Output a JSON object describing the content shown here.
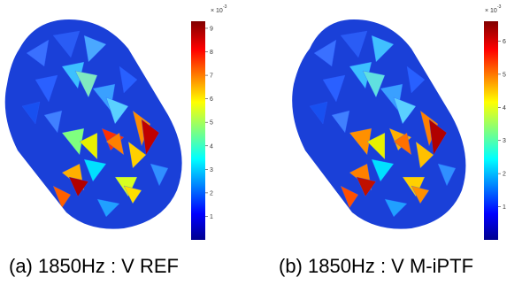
{
  "panels": [
    {
      "caption": "(a) 1850Hz : V REF",
      "colorbar": {
        "exponent_label": "× 10",
        "exponent_power": "-3",
        "ticks": [
          "1",
          "2",
          "3",
          "4",
          "5",
          "6",
          "7",
          "8",
          "9"
        ],
        "max": 9.3
      }
    },
    {
      "caption": "(b) 1850Hz : V M-iPTF",
      "colorbar": {
        "exponent_label": "× 10",
        "exponent_power": "-3",
        "ticks": [
          "1",
          "2",
          "3",
          "4",
          "5",
          "6"
        ],
        "max": 6.6
      }
    }
  ],
  "colormap": "jet"
}
